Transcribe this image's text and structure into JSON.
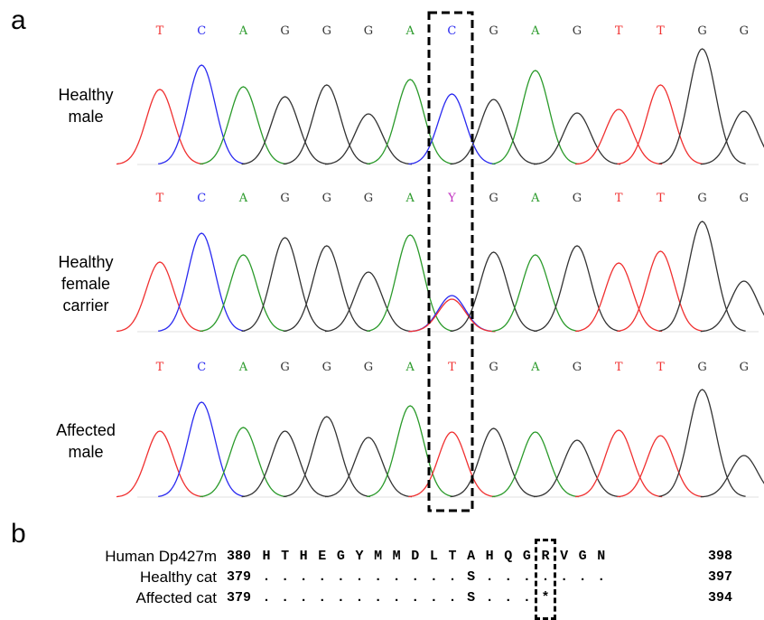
{
  "panels": {
    "a": "a",
    "b": "b"
  },
  "chromatogram": {
    "base_colors": {
      "A": "#2a9a2a",
      "C": "#2a2af0",
      "G": "#333333",
      "T": "#f03030",
      "Y": "#c030c0"
    },
    "tracks": [
      {
        "label_lines": [
          "Healthy",
          "male"
        ],
        "bases": [
          "T",
          "C",
          "A",
          "G",
          "G",
          "G",
          "A",
          "C",
          "G",
          "A",
          "G",
          "T",
          "T",
          "G",
          "G"
        ]
      },
      {
        "label_lines": [
          "Healthy",
          "female",
          "carrier"
        ],
        "bases": [
          "T",
          "C",
          "A",
          "G",
          "G",
          "G",
          "A",
          "Y",
          "G",
          "A",
          "G",
          "T",
          "T",
          "G",
          "G"
        ]
      },
      {
        "label_lines": [
          "Affected",
          "male"
        ],
        "bases": [
          "T",
          "C",
          "A",
          "G",
          "G",
          "G",
          "A",
          "T",
          "G",
          "A",
          "G",
          "T",
          "T",
          "G",
          "G"
        ]
      }
    ]
  },
  "alignment": {
    "rows": [
      {
        "name": "Human Dp427m",
        "start": "380",
        "residues": [
          "H",
          "T",
          "H",
          "E",
          "G",
          "Y",
          "M",
          "M",
          "D",
          "L",
          "T",
          "A",
          "H",
          "Q",
          "G",
          "R",
          "V",
          "G",
          "N"
        ],
        "end": "398"
      },
      {
        "name": "Healthy cat",
        "start": "379",
        "residues": [
          ".",
          ".",
          ".",
          ".",
          ".",
          ".",
          ".",
          ".",
          ".",
          ".",
          ".",
          "S",
          ".",
          ".",
          ".",
          ".",
          ".",
          ".",
          "."
        ],
        "end": "397"
      },
      {
        "name": "Affected cat",
        "start": "379",
        "residues": [
          ".",
          ".",
          ".",
          ".",
          ".",
          ".",
          ".",
          ".",
          ".",
          ".",
          ".",
          "S",
          ".",
          ".",
          ".",
          "*",
          "",
          "",
          ""
        ],
        "end": "394"
      }
    ]
  }
}
